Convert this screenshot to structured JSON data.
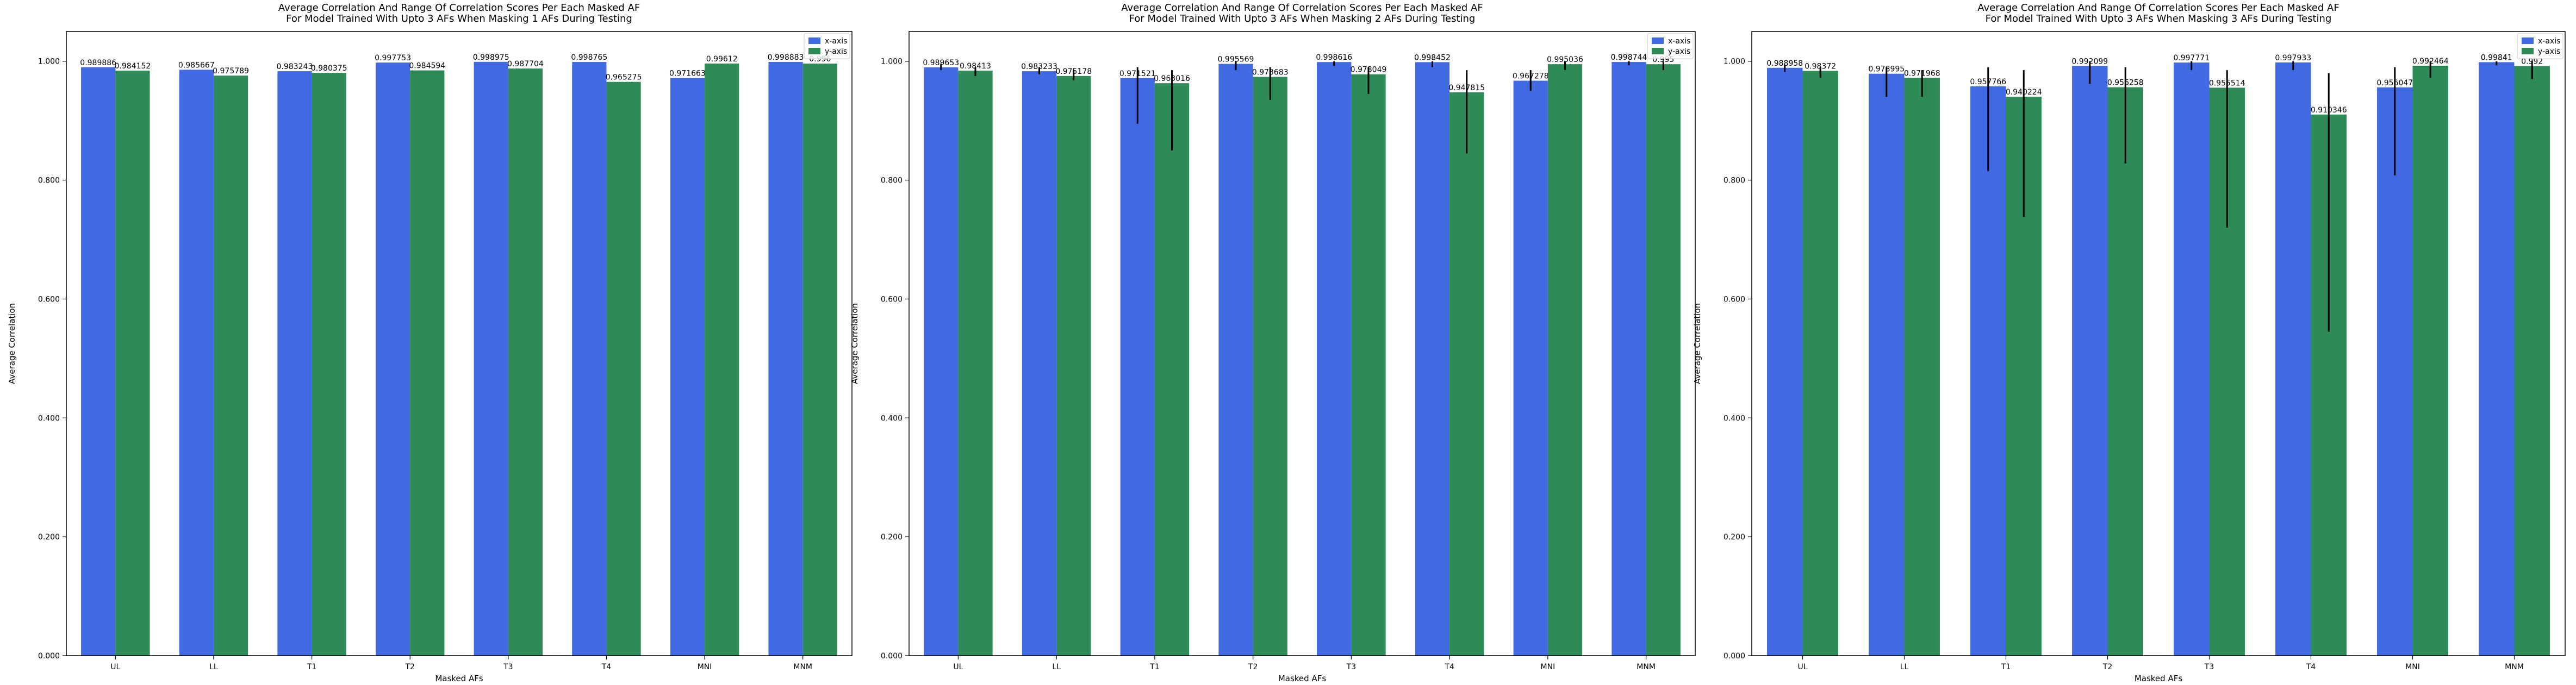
{
  "chart_data": [
    {
      "type": "bar",
      "title": "Average Correlation And Range Of Correlation Scores Per Each Masked AF\nFor Model Trained With Upto 3 AFs When Masking 1 AFs During Testing",
      "xlabel": "Masked AFs",
      "ylabel": "Average Correlation",
      "ylim": [
        0,
        1.05
      ],
      "yticks": [
        "0.000",
        "0.200",
        "0.400",
        "0.600",
        "0.800",
        "1.000"
      ],
      "categories": [
        "UL",
        "LL",
        "T1",
        "T2",
        "T3",
        "T4",
        "MNI",
        "MNM"
      ],
      "series": [
        {
          "name": "x-axis",
          "color": "#4169e1",
          "values": [
            0.989886,
            0.985667,
            0.983243,
            0.997753,
            0.998975,
            0.998765,
            0.971663,
            0.998883
          ],
          "labels": [
            "0.989886",
            "0.985667",
            "0.983243",
            "0.997753",
            "0.998975",
            "0.998765",
            "0.971663",
            "0.998883"
          ],
          "err_low": [
            0.989886,
            0.985667,
            0.983243,
            0.997753,
            0.998975,
            0.998765,
            0.971663,
            0.998883
          ],
          "err_high": [
            0.989886,
            0.985667,
            0.983243,
            0.997753,
            0.998975,
            0.998765,
            0.971663,
            0.998883
          ]
        },
        {
          "name": "y-axis",
          "color": "#2e8b57",
          "values": [
            0.984152,
            0.975789,
            0.980375,
            0.984594,
            0.987704,
            0.965275,
            0.99612,
            0.996
          ],
          "labels": [
            "0.984152",
            "0.975789",
            "0.980375",
            "0.984594",
            "0.987704",
            "0.965275",
            "0.99612",
            "0.996"
          ],
          "err_low": [
            0.984152,
            0.975789,
            0.980375,
            0.984594,
            0.987704,
            0.965275,
            0.99612,
            0.996
          ],
          "err_high": [
            0.984152,
            0.975789,
            0.980375,
            0.984594,
            0.987704,
            0.965275,
            0.99612,
            0.996
          ]
        }
      ],
      "legend": "top-right",
      "grid": false
    },
    {
      "type": "bar",
      "title": "Average Correlation And Range Of Correlation Scores Per Each Masked AF\nFor Model Trained With Upto 3 AFs When Masking 2 AFs During Testing",
      "xlabel": "Masked AFs",
      "ylabel": "Average Correlation",
      "ylim": [
        0,
        1.05
      ],
      "yticks": [
        "0.000",
        "0.200",
        "0.400",
        "0.600",
        "0.800",
        "1.000"
      ],
      "categories": [
        "UL",
        "LL",
        "T1",
        "T2",
        "T3",
        "T4",
        "MNI",
        "MNM"
      ],
      "series": [
        {
          "name": "x-axis",
          "color": "#4169e1",
          "values": [
            0.989653,
            0.983233,
            0.971521,
            0.995569,
            0.998616,
            0.998452,
            0.967278,
            0.998744
          ],
          "labels": [
            "0.989653",
            "0.983233",
            "0.971521",
            "0.995569",
            "0.998616",
            "0.998452",
            "0.967278",
            "0.998744"
          ],
          "err_low": [
            0.985,
            0.978,
            0.895,
            0.985,
            0.992,
            0.99,
            0.95,
            0.993
          ],
          "err_high": [
            0.996,
            0.99,
            0.99,
            1.0,
            1.0,
            1.0,
            0.985,
            1.0
          ]
        },
        {
          "name": "y-axis",
          "color": "#2e8b57",
          "values": [
            0.98413,
            0.975178,
            0.963016,
            0.973683,
            0.978049,
            0.947815,
            0.995036,
            0.995
          ],
          "labels": [
            "0.98413",
            "0.975178",
            "0.963016",
            "0.973683",
            "0.978049",
            "0.947815",
            "0.995036",
            "0.995"
          ],
          "err_low": [
            0.975,
            0.968,
            0.85,
            0.935,
            0.945,
            0.845,
            0.985,
            0.985
          ],
          "err_high": [
            0.99,
            0.985,
            0.985,
            0.99,
            0.99,
            0.985,
            1.0,
            1.0
          ]
        }
      ],
      "legend": "top-right",
      "grid": false
    },
    {
      "type": "bar",
      "title": "Average Correlation And Range Of Correlation Scores Per Each Masked AF\nFor Model Trained With Upto 3 AFs When Masking 3 AFs During Testing",
      "xlabel": "Masked AFs",
      "ylabel": "Average Correlation",
      "ylim": [
        0,
        1.05
      ],
      "yticks": [
        "0.000",
        "0.200",
        "0.400",
        "0.600",
        "0.800",
        "1.000"
      ],
      "categories": [
        "UL",
        "LL",
        "T1",
        "T2",
        "T3",
        "T4",
        "MNI",
        "MNM"
      ],
      "series": [
        {
          "name": "x-axis",
          "color": "#4169e1",
          "values": [
            0.988958,
            0.978995,
            0.957766,
            0.992099,
            0.997771,
            0.997933,
            0.956047,
            0.99841
          ],
          "labels": [
            "0.988958",
            "0.978995",
            "0.957766",
            "0.992099",
            "0.997771",
            "0.997933",
            "0.956047",
            "0.99841"
          ],
          "err_low": [
            0.982,
            0.94,
            0.815,
            0.962,
            0.985,
            0.985,
            0.808,
            0.993
          ],
          "err_high": [
            0.994,
            0.99,
            0.99,
            1.0,
            1.0,
            1.0,
            0.99,
            1.0
          ]
        },
        {
          "name": "y-axis",
          "color": "#2e8b57",
          "values": [
            0.98372,
            0.971968,
            0.940224,
            0.956258,
            0.955514,
            0.910346,
            0.992464,
            0.992
          ],
          "labels": [
            "0.98372",
            "0.971968",
            "0.940224",
            "0.956258",
            "0.955514",
            "0.910346",
            "0.992464",
            "0.992"
          ],
          "err_low": [
            0.972,
            0.94,
            0.738,
            0.828,
            0.72,
            0.545,
            0.972,
            0.97
          ],
          "err_high": [
            0.99,
            0.985,
            0.985,
            0.99,
            0.985,
            0.98,
            1.0,
            1.0
          ]
        }
      ],
      "legend": "top-right",
      "grid": false
    }
  ]
}
